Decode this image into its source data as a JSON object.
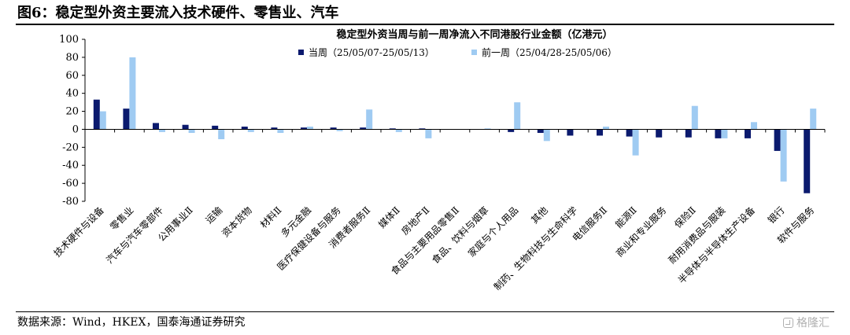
{
  "figure": {
    "title": "图6：稳定型外资主要流入技术硬件、零售业、汽车",
    "source": "数据来源：Wind，HKEX，国泰海通证券研究",
    "watermark": "格隆汇"
  },
  "colors": {
    "current": "#0b1a6e",
    "previous": "#9fcbf2",
    "axis": "#000000"
  },
  "chart_data": {
    "type": "bar",
    "title": "稳定型外资当周与前一周净流入不同港股行业金额（亿港元）",
    "xlabel": "",
    "ylabel": "",
    "ylim": [
      -80,
      100
    ],
    "yticks": [
      100,
      80,
      60,
      40,
      20,
      0,
      -20,
      -40,
      -60,
      -80
    ],
    "grid": false,
    "legend": "top",
    "categories": [
      "技术硬件与设备",
      "零售业",
      "汽车与汽车零部件",
      "公用事业Ⅱ",
      "运输",
      "资本货物",
      "材料Ⅱ",
      "多元金融",
      "医疗保健设备与服务",
      "消费者服务Ⅱ",
      "媒体Ⅱ",
      "房地产Ⅱ",
      "食品与主要用品零售Ⅱ",
      "食品、饮料与烟草",
      "家庭与个人用品",
      "其他",
      "制药、生物科技与生命科学",
      "电信服务Ⅱ",
      "能源Ⅱ",
      "商业和专业服务",
      "保险Ⅱ",
      "耐用消费品与服装",
      "半导体与半导体生产设备",
      "银行",
      "软件与服务"
    ],
    "series": [
      {
        "name": "当周（25/05/07-25/05/13）",
        "values": [
          33,
          23,
          7,
          5,
          4,
          3,
          2,
          2,
          2,
          2,
          1,
          1,
          0,
          0,
          -3,
          -4,
          -7,
          -7,
          -8,
          -9,
          -9,
          -10,
          -10,
          -24,
          -71
        ]
      },
      {
        "name": "前一周（25/04/28-25/05/06）",
        "values": [
          20,
          80,
          -3,
          -4,
          -11,
          -3,
          -4,
          3,
          -2,
          22,
          -3,
          -10,
          0,
          1,
          30,
          -13,
          0,
          3,
          -29,
          0,
          26,
          -10,
          8,
          -58,
          23
        ]
      }
    ]
  }
}
